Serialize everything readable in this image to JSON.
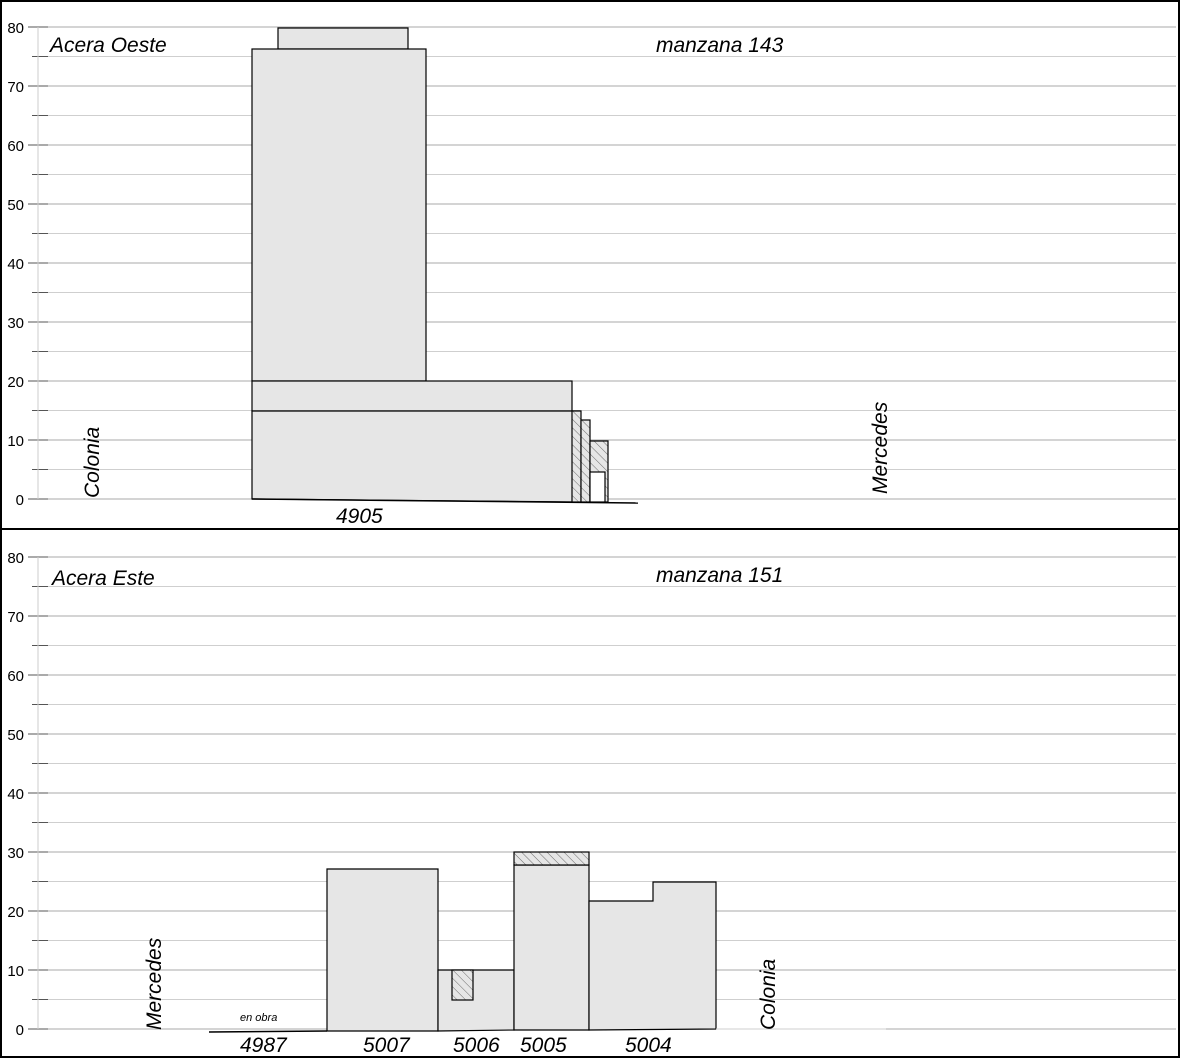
{
  "colors": {
    "fill": "#e6e6e6",
    "outline": "#000000",
    "grid_major": "#a8a8a8",
    "grid_minor": "#cfcfcf",
    "hatch": "#707070"
  },
  "panels": [
    {
      "id": "oeste",
      "side_label": "Acera Oeste",
      "block_label": "manzana 143",
      "left_street": "Colonia",
      "right_street": "Mercedes",
      "y_axis": {
        "min": 0,
        "max": 80,
        "ticks": [
          "0",
          "10",
          "20",
          "30",
          "40",
          "50",
          "60",
          "70",
          "80"
        ]
      },
      "lots": [
        {
          "label": "4905"
        }
      ],
      "notes": []
    },
    {
      "id": "este",
      "side_label": "Acera Este",
      "block_label": "manzana 151",
      "left_street": "Mercedes",
      "right_street": "Colonia",
      "y_axis": {
        "min": 0,
        "max": 80,
        "ticks": [
          "0",
          "10",
          "20",
          "30",
          "40",
          "50",
          "60",
          "70",
          "80"
        ]
      },
      "lots": [
        {
          "label": "4987"
        },
        {
          "label": "5007"
        },
        {
          "label": "5006"
        },
        {
          "label": "5005"
        },
        {
          "label": "5004"
        }
      ],
      "notes": [
        {
          "text": "en obra"
        }
      ]
    }
  ],
  "chart_data": [
    {
      "type": "bar",
      "title": "manzana 143",
      "subtitle": "Acera Oeste",
      "xlabel": "",
      "ylabel": "",
      "ylim": [
        0,
        80
      ],
      "grid": true,
      "categories": [
        "4905"
      ],
      "buildings": [
        {
          "lot": "4905",
          "height": 80
        },
        {
          "lot": "4905",
          "height": 76
        },
        {
          "lot": "4905",
          "height": 20
        },
        {
          "lot": "4905",
          "height": 15
        }
      ],
      "adjacent_hatched_heights": [
        15,
        13.5,
        10,
        4.5
      ]
    },
    {
      "type": "bar",
      "title": "manzana 151",
      "subtitle": "Acera Este",
      "xlabel": "",
      "ylabel": "",
      "ylim": [
        0,
        80
      ],
      "grid": true,
      "categories": [
        "4987",
        "5007",
        "5006",
        "5005",
        "5004"
      ],
      "values": [
        0,
        27.2,
        10,
        30,
        25
      ],
      "details": {
        "4987": "en obra",
        "5005": {
          "main": 27.8,
          "hatched_top": 30
        },
        "5006": {
          "front": 10,
          "setback_hatched": 10
        },
        "5004": {
          "front": 21.8,
          "rear": 25
        }
      }
    }
  ]
}
